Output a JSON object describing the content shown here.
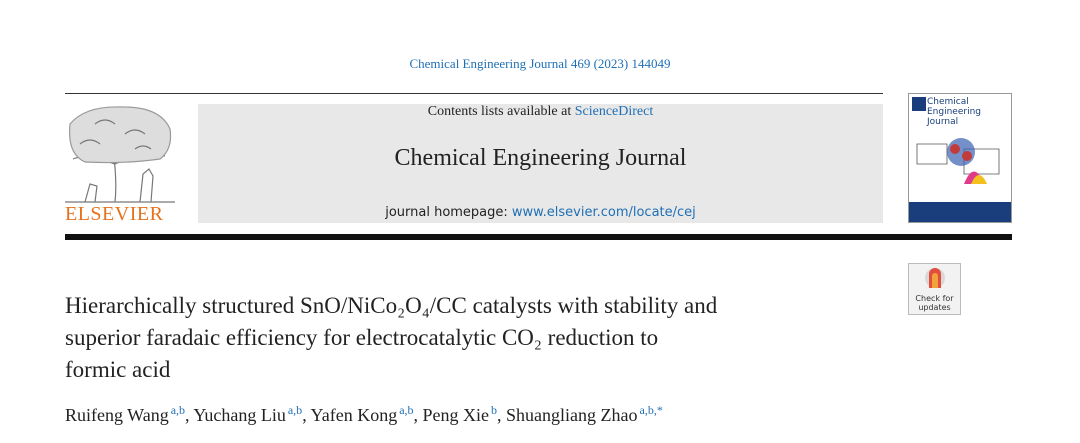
{
  "header": {
    "citation": "Chemical Engineering Journal 469 (2023) 144049",
    "contents_prefix": "Contents lists available at ",
    "contents_link": "ScienceDirect",
    "journal_name": "Chemical Engineering Journal",
    "homepage_prefix": "journal homepage: ",
    "homepage_link": "www.elsevier.com/locate/cej",
    "publisher": "ELSEVIER",
    "cover_title": [
      "Chemical",
      "Engineering",
      "Journal"
    ]
  },
  "badge": {
    "label": [
      "Check for",
      "updates"
    ]
  },
  "article": {
    "title_lines": [
      "Hierarchically structured SnO/NiCo₂O₄/CC catalysts with stability and",
      "superior faradaic efficiency for electrocatalytic CO₂ reduction to",
      "formic acid"
    ],
    "author_separator": ", ",
    "authors": [
      {
        "name": "Ruifeng Wang",
        "affiliations": "a,b"
      },
      {
        "name": "Yuchang Liu",
        "affiliations": "a,b"
      },
      {
        "name": "Yafen Kong",
        "affiliations": "a,b"
      },
      {
        "name": "Peng Xie",
        "affiliations": "b"
      },
      {
        "name": "Shuangliang Zhao",
        "affiliations": "a,b,*"
      }
    ]
  }
}
